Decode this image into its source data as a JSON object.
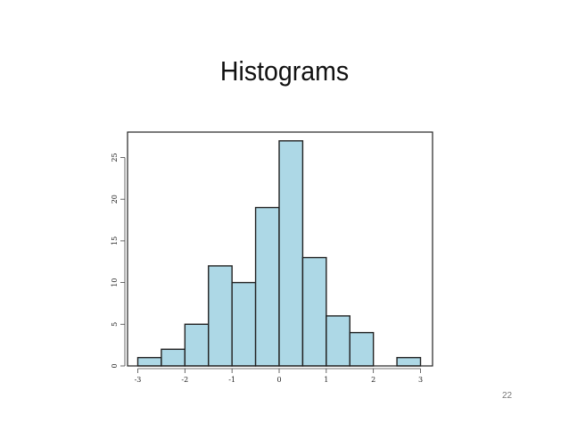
{
  "slide": {
    "title": "Histograms",
    "page_number": "22"
  },
  "chart_data": {
    "type": "bar",
    "title": "",
    "xlabel": "",
    "ylabel": "",
    "bin_width": 0.5,
    "bin_starts": [
      -3.0,
      -2.5,
      -2.0,
      -1.5,
      -1.0,
      -0.5,
      0.0,
      0.5,
      1.0,
      1.5,
      2.0,
      2.5
    ],
    "values": [
      1,
      2,
      5,
      12,
      10,
      19,
      27,
      13,
      6,
      4,
      0,
      1
    ],
    "xticks": [
      -3,
      -2,
      -1,
      0,
      1,
      2,
      3
    ],
    "yticks": [
      0,
      5,
      10,
      15,
      20,
      25
    ],
    "xlim": [
      -3.2,
      3.3
    ],
    "ylim": [
      0,
      27.9
    ],
    "grid": false,
    "colors": {
      "bar_fill": "#add8e6",
      "bar_stroke": "#222222",
      "frame": "#222222"
    }
  }
}
